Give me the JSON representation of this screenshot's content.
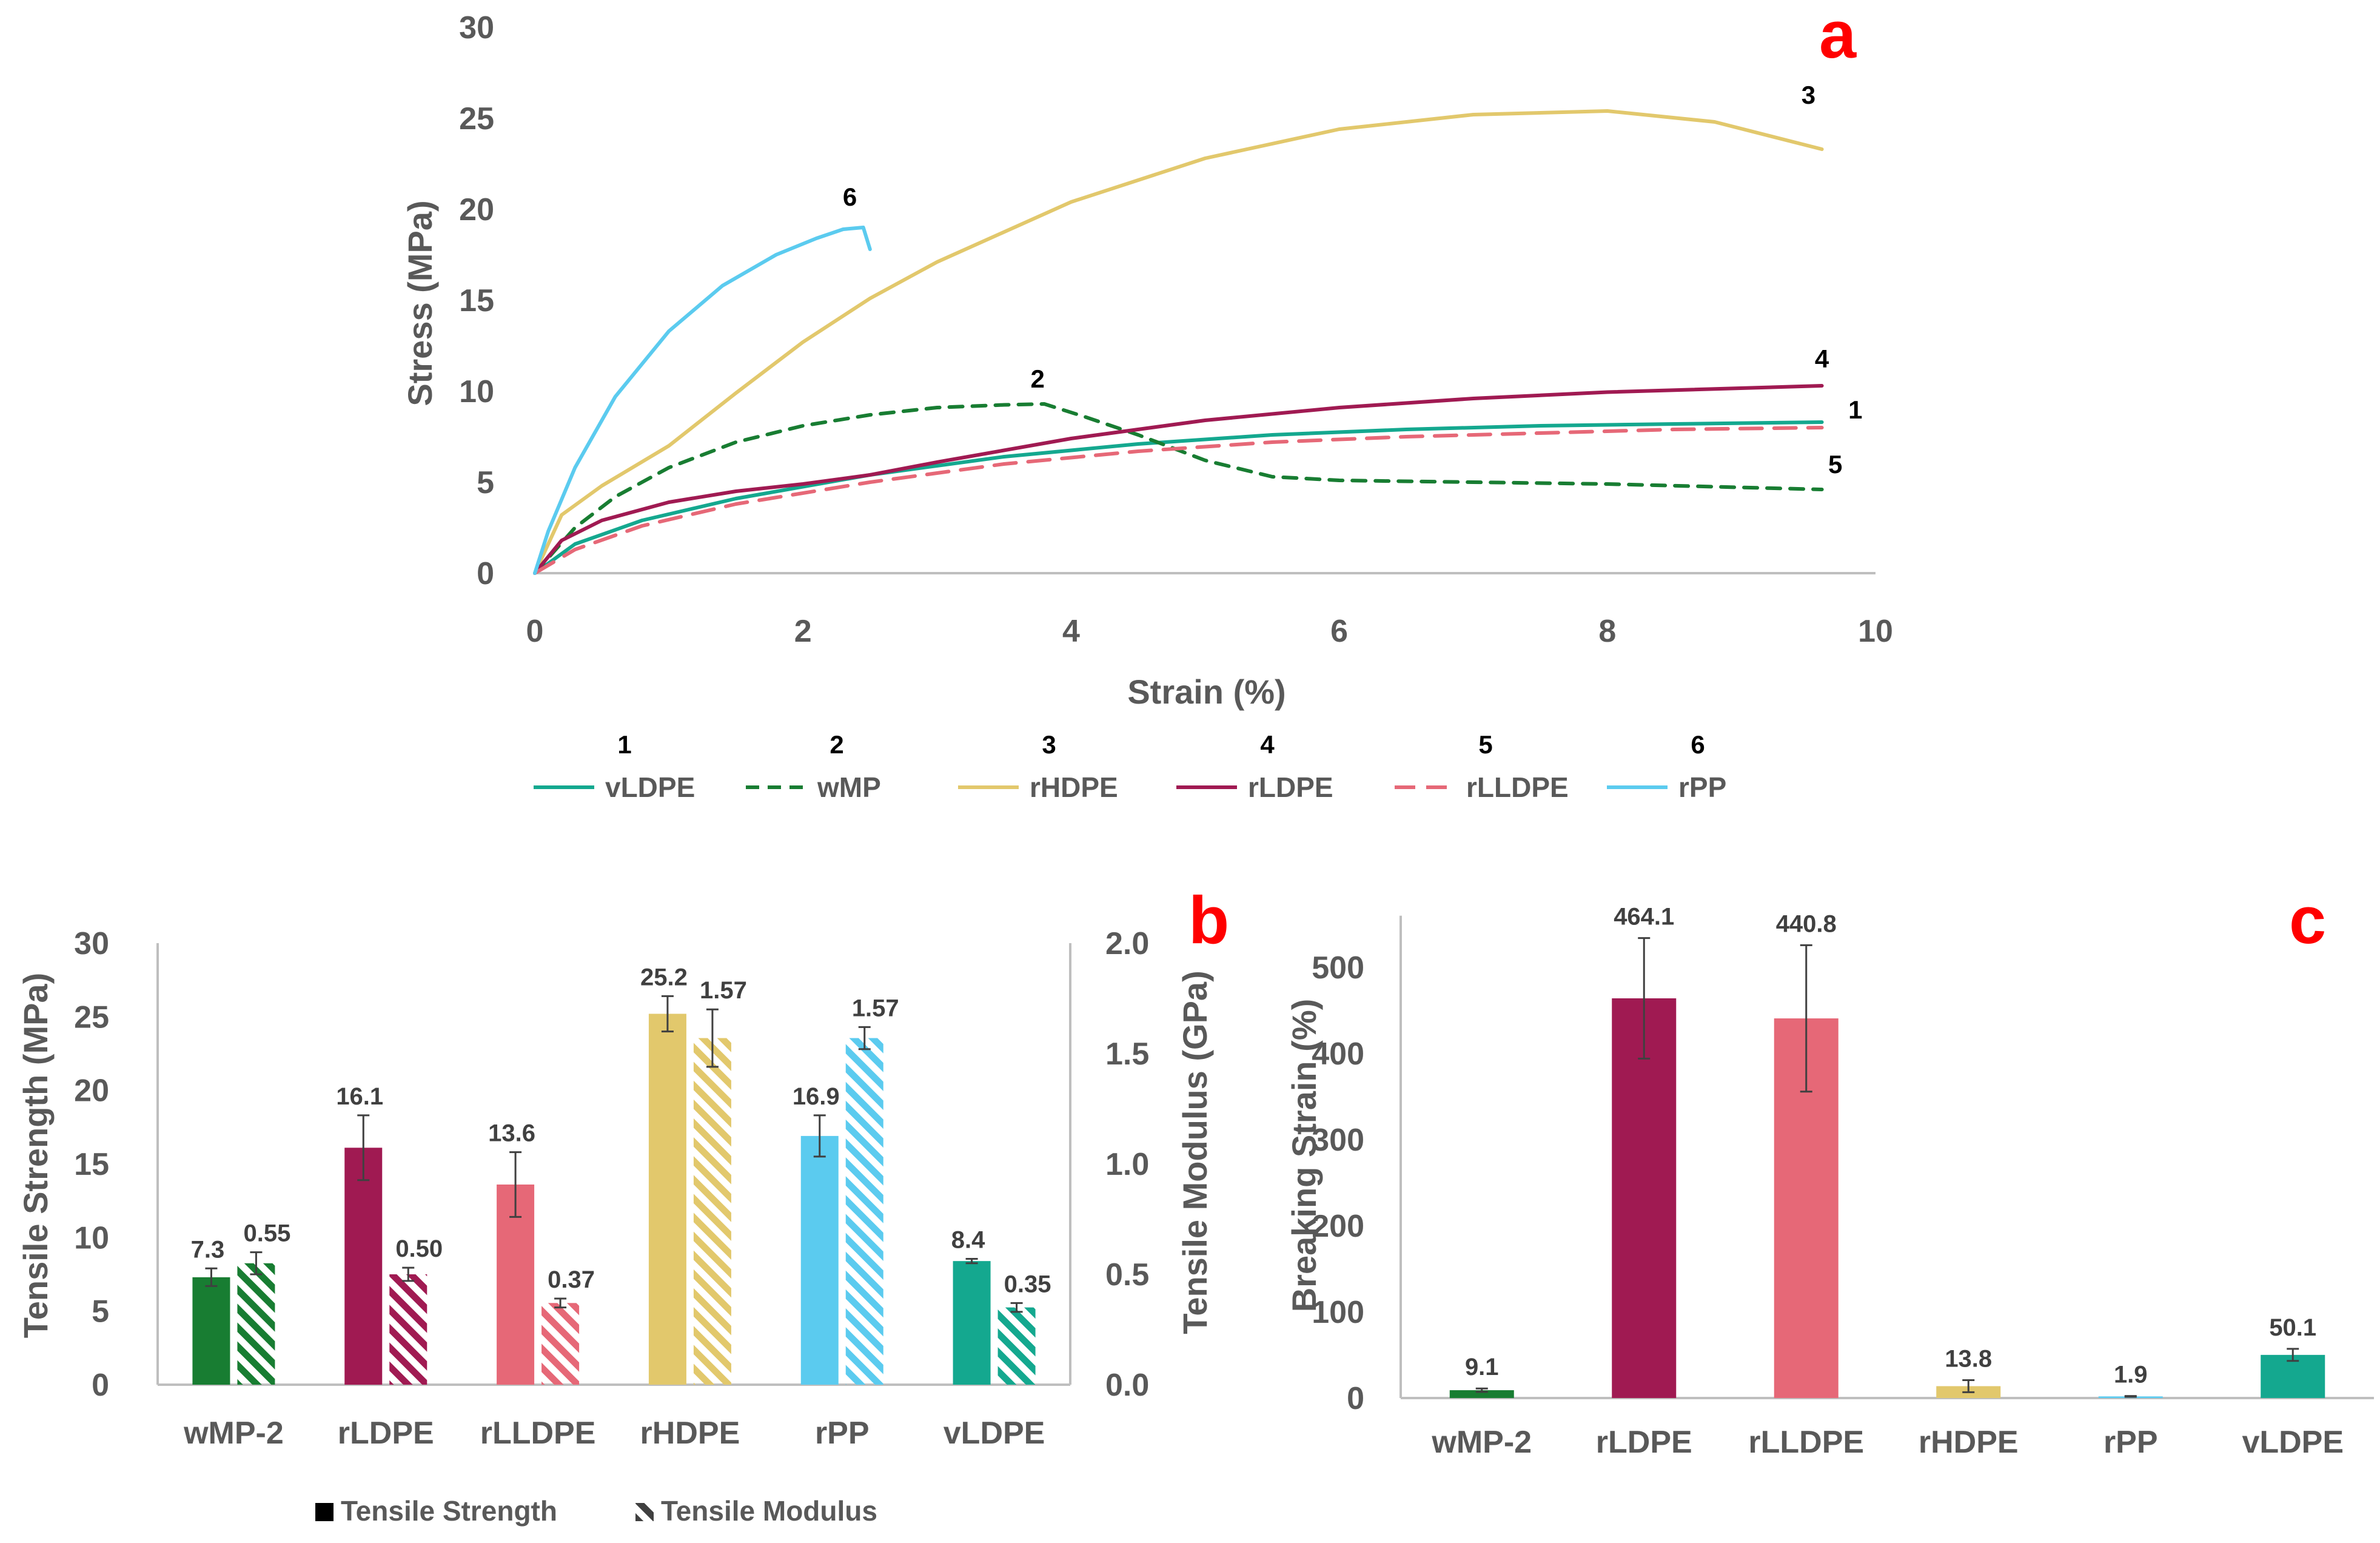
{
  "colors": {
    "vLDPE": "#14a88f",
    "wMP": "#187d32",
    "rHDPE": "#e2c86c",
    "rLDPE": "#a01a52",
    "rLLDPE": "#e66877",
    "rPP": "#5bcbef",
    "panel_letter": "#ff0000",
    "axis": "#bfbfbf",
    "error_bar": "#404040"
  },
  "chart_data": [
    {
      "panel": "a",
      "type": "line",
      "xlabel": "Strain (%)",
      "ylabel": "Stress (MPa)",
      "xlim": [
        0,
        10
      ],
      "ylim": [
        0,
        30
      ],
      "xticks": [
        "0",
        "2",
        "4",
        "6",
        "8",
        "10"
      ],
      "yticks": [
        "0",
        "5",
        "10",
        "15",
        "20",
        "25",
        "30"
      ],
      "legend_position": "bottom",
      "series": [
        {
          "key": "vLDPE",
          "name": "vLDPE",
          "number": "1",
          "style": "solid",
          "x": [
            0,
            0.3,
            0.8,
            1.5,
            2.5,
            3.5,
            4.5,
            5.5,
            6.5,
            7.5,
            8.5,
            9.6
          ],
          "y": [
            0,
            1.6,
            2.9,
            4.1,
            5.4,
            6.4,
            7.1,
            7.6,
            7.9,
            8.1,
            8.2,
            8.3
          ]
        },
        {
          "key": "wMP",
          "name": "wMP",
          "number": "2",
          "style": "dashed",
          "x": [
            0,
            0.3,
            0.6,
            1.0,
            1.5,
            2.0,
            2.5,
            3.0,
            3.5,
            3.8,
            4.1,
            4.5,
            5.0,
            5.5,
            6.0,
            7.0,
            8.0,
            9.6
          ],
          "y": [
            0,
            2.5,
            4.2,
            5.8,
            7.2,
            8.1,
            8.7,
            9.1,
            9.25,
            9.3,
            8.6,
            7.6,
            6.2,
            5.3,
            5.1,
            5.0,
            4.9,
            4.6
          ]
        },
        {
          "key": "rHDPE",
          "name": "rHDPE",
          "number": "3",
          "style": "solid",
          "x": [
            0,
            0.2,
            0.5,
            1.0,
            1.5,
            2.0,
            2.5,
            3.0,
            4.0,
            5.0,
            6.0,
            7.0,
            8.0,
            8.8,
            9.6
          ],
          "y": [
            0,
            3.2,
            4.8,
            7.0,
            9.9,
            12.7,
            15.1,
            17.1,
            20.4,
            22.8,
            24.4,
            25.2,
            25.4,
            24.8,
            23.3
          ]
        },
        {
          "key": "rLDPE",
          "name": "rLDPE",
          "number": "4",
          "style": "solid",
          "x": [
            0,
            0.2,
            0.5,
            1.0,
            1.5,
            2.0,
            2.5,
            3.0,
            4.0,
            5.0,
            6.0,
            7.0,
            8.0,
            9.6
          ],
          "y": [
            0,
            1.8,
            2.9,
            3.9,
            4.5,
            4.9,
            5.4,
            6.1,
            7.4,
            8.4,
            9.1,
            9.6,
            9.95,
            10.3
          ]
        },
        {
          "key": "rLLDPE",
          "name": "rLLDPE",
          "number": "5",
          "style": "dashed",
          "x": [
            0,
            0.3,
            0.8,
            1.5,
            2.5,
            3.5,
            4.5,
            5.5,
            6.5,
            7.5,
            8.5,
            9.6
          ],
          "y": [
            0,
            1.3,
            2.6,
            3.8,
            5.0,
            6.0,
            6.7,
            7.2,
            7.5,
            7.7,
            7.9,
            8.0
          ]
        },
        {
          "key": "rPP",
          "name": "rPP",
          "number": "6",
          "style": "solid",
          "x": [
            0,
            0.1,
            0.3,
            0.6,
            1.0,
            1.4,
            1.8,
            2.1,
            2.3,
            2.45,
            2.5
          ],
          "y": [
            0,
            2.3,
            5.8,
            9.7,
            13.3,
            15.8,
            17.5,
            18.4,
            18.9,
            19.0,
            17.8
          ]
        }
      ],
      "curve_labels": [
        {
          "text": "1",
          "x": 9.85,
          "y": 8.5
        },
        {
          "text": "2",
          "x": 3.75,
          "y": 10.2
        },
        {
          "text": "3",
          "x": 9.5,
          "y": 25.8
        },
        {
          "text": "4",
          "x": 9.6,
          "y": 11.3
        },
        {
          "text": "5",
          "x": 9.7,
          "y": 5.5
        },
        {
          "text": "6",
          "x": 2.35,
          "y": 20.2
        }
      ],
      "panel_letter": "a"
    },
    {
      "panel": "b",
      "type": "bar",
      "categories": [
        "wMP-2",
        "rLDPE",
        "rLLDPE",
        "rHDPE",
        "rPP",
        "vLDPE"
      ],
      "category_keys": [
        "wMP",
        "rLDPE",
        "rLLDPE",
        "rHDPE",
        "rPP",
        "vLDPE"
      ],
      "ylabel": "Tensile Strength (MPa)",
      "y2label": "Tensile Modulus (GPa)",
      "ylim": [
        0,
        30
      ],
      "y2lim": [
        0,
        2.0
      ],
      "yticks": [
        "0",
        "5",
        "10",
        "15",
        "20",
        "25",
        "30"
      ],
      "y2ticks": [
        "0.0",
        "0.5",
        "1.0",
        "1.5",
        "2.0"
      ],
      "series": [
        {
          "name": "Tensile Strength",
          "pattern": "solid",
          "axis": "left",
          "values": [
            7.3,
            16.1,
            13.6,
            25.2,
            16.9,
            8.4
          ],
          "errors": [
            0.6,
            2.2,
            2.2,
            1.2,
            1.4,
            0.15
          ],
          "labels": [
            "7.3",
            "16.1",
            "13.6",
            "25.2",
            "16.9",
            "8.4"
          ]
        },
        {
          "name": "Tensile Modulus",
          "pattern": "hatched",
          "axis": "right",
          "values": [
            0.55,
            0.5,
            0.37,
            1.57,
            1.57,
            0.35
          ],
          "errors": [
            0.05,
            0.03,
            0.02,
            0.13,
            0.05,
            0.02
          ],
          "labels": [
            "0.55",
            "0.50",
            "0.37",
            "1.57",
            "1.57",
            "0.35"
          ]
        }
      ],
      "legend": [
        "Tensile Strength",
        "Tensile Modulus"
      ],
      "legend_position": "bottom",
      "panel_letter": "b"
    },
    {
      "panel": "c",
      "type": "bar",
      "categories": [
        "wMP-2",
        "rLDPE",
        "rLLDPE",
        "rHDPE",
        "rPP",
        "vLDPE"
      ],
      "category_keys": [
        "wMP",
        "rLDPE",
        "rLLDPE",
        "rHDPE",
        "rPP",
        "vLDPE"
      ],
      "ylabel": "Breaking Strain (%)",
      "ylim": [
        0,
        560
      ],
      "yticks": [
        "0",
        "100",
        "200",
        "300",
        "400",
        "500"
      ],
      "values": [
        9.1,
        464.1,
        440.8,
        13.8,
        1.9,
        50.1
      ],
      "errors": [
        2,
        70,
        85,
        7,
        0.5,
        7
      ],
      "labels": [
        "9.1",
        "464.1",
        "440.8",
        "13.8",
        "1.9",
        "50.1"
      ],
      "panel_letter": "c"
    }
  ]
}
